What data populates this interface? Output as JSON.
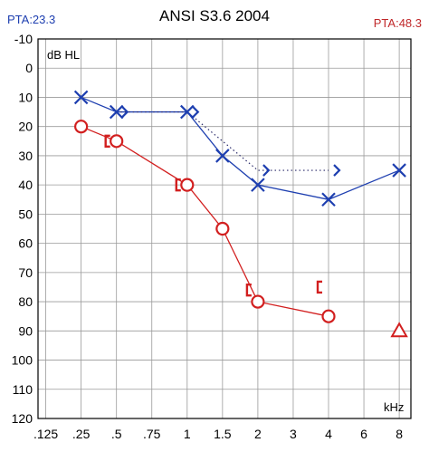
{
  "header": {
    "title": "ANSI S3.6 2004",
    "pta_left": "PTA:23.3",
    "pta_right": "PTA:48.3"
  },
  "chart_data": {
    "type": "scatter",
    "title": "ANSI S3.6 2004",
    "ylabel": "dB HL",
    "xlabel": "kHz",
    "x_ticks": [
      ".125",
      ".25",
      ".5",
      ".75",
      "1",
      "1.5",
      "2",
      "3",
      "4",
      "6",
      "8"
    ],
    "x_tick_values": [
      0.125,
      0.25,
      0.5,
      0.75,
      1,
      1.5,
      2,
      3,
      4,
      6,
      8
    ],
    "x_scale": "log",
    "y_ticks": [
      "-10",
      "0",
      "10",
      "20",
      "30",
      "40",
      "50",
      "60",
      "70",
      "80",
      "90",
      "100",
      "110",
      "120"
    ],
    "y_tick_values": [
      -10,
      0,
      10,
      20,
      30,
      40,
      50,
      60,
      70,
      80,
      90,
      100,
      110,
      120
    ],
    "y_range": [
      -10,
      120
    ],
    "y_inverted": true,
    "grid": true,
    "colors": {
      "left": "#1e3fb0",
      "right": "#d21f1f"
    },
    "series": [
      {
        "ear": "left",
        "marker": "x",
        "connected": true,
        "points": [
          {
            "x": 0.25,
            "y": 10
          },
          {
            "x": 0.5,
            "y": 15
          },
          {
            "x": 1,
            "y": 15
          },
          {
            "x": 1.5,
            "y": 30
          },
          {
            "x": 2,
            "y": 40
          },
          {
            "x": 4,
            "y": 45
          },
          {
            "x": 8,
            "y": 35
          }
        ]
      },
      {
        "ear": "left",
        "marker": "bone-conduction",
        "connected": "dotted",
        "points": [
          {
            "x": 0.5,
            "y": 15
          },
          {
            "x": 1,
            "y": 15
          },
          {
            "x": 2,
            "y": 35
          },
          {
            "x": 4,
            "y": 35
          }
        ]
      },
      {
        "ear": "right",
        "marker": "circle",
        "connected": true,
        "points": [
          {
            "x": 0.25,
            "y": 20
          },
          {
            "x": 0.5,
            "y": 25
          },
          {
            "x": 1,
            "y": 40
          },
          {
            "x": 1.5,
            "y": 55
          },
          {
            "x": 2,
            "y": 80
          },
          {
            "x": 4,
            "y": 85
          }
        ]
      },
      {
        "ear": "right",
        "marker": "bone-conduction-masked",
        "connected": false,
        "points": [
          {
            "x": 0.5,
            "y": 25
          },
          {
            "x": 1,
            "y": 40
          },
          {
            "x": 2,
            "y": 76
          },
          {
            "x": 4,
            "y": 75
          }
        ]
      },
      {
        "ear": "right",
        "marker": "triangle",
        "connected": true,
        "points": [
          {
            "x": 8,
            "y": 90
          }
        ]
      }
    ]
  }
}
